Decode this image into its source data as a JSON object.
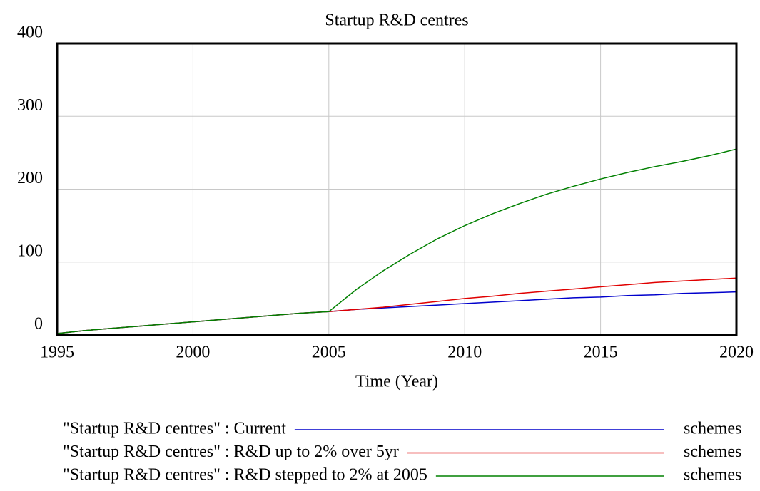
{
  "chart_data": {
    "type": "line",
    "title": "Startup R&D centres",
    "x_label": "Time (Year)",
    "x": [
      1995,
      1996,
      1997,
      1998,
      1999,
      2000,
      2001,
      2002,
      2003,
      2004,
      2005,
      2006,
      2007,
      2008,
      2009,
      2010,
      2011,
      2012,
      2013,
      2014,
      2015,
      2016,
      2017,
      2018,
      2019,
      2020
    ],
    "series": [
      {
        "name": "\"Startup R&D centres\" : Current",
        "unit": "schemes",
        "color": "#0000cc",
        "values": [
          2,
          6,
          9,
          12,
          15,
          18,
          21,
          24,
          27,
          30,
          32,
          35,
          37,
          39,
          41,
          43,
          45,
          47,
          49,
          51,
          52,
          54,
          55,
          57,
          58,
          59
        ]
      },
      {
        "name": "\"Startup R&D centres\" : R&D up to 2% over 5yr",
        "unit": "schemes",
        "color": "#e00000",
        "values": [
          2,
          6,
          9,
          12,
          15,
          18,
          21,
          24,
          27,
          30,
          32,
          35,
          38,
          42,
          46,
          50,
          53,
          57,
          60,
          63,
          66,
          69,
          72,
          74,
          76,
          78
        ]
      },
      {
        "name": "\"Startup R&D centres\" : R&D stepped to 2% at 2005",
        "unit": "schemes",
        "color": "#008000",
        "values": [
          2,
          6,
          9,
          12,
          15,
          18,
          21,
          24,
          27,
          30,
          32,
          62,
          88,
          111,
          132,
          150,
          166,
          180,
          193,
          204,
          214,
          223,
          231,
          238,
          246,
          255
        ]
      }
    ],
    "xlim": [
      1995,
      2020
    ],
    "xticks": [
      1995,
      2000,
      2005,
      2010,
      2015,
      2020
    ],
    "ylim": [
      0,
      400
    ],
    "yticks": [
      0,
      100,
      200,
      300,
      400
    ],
    "grid": true
  }
}
